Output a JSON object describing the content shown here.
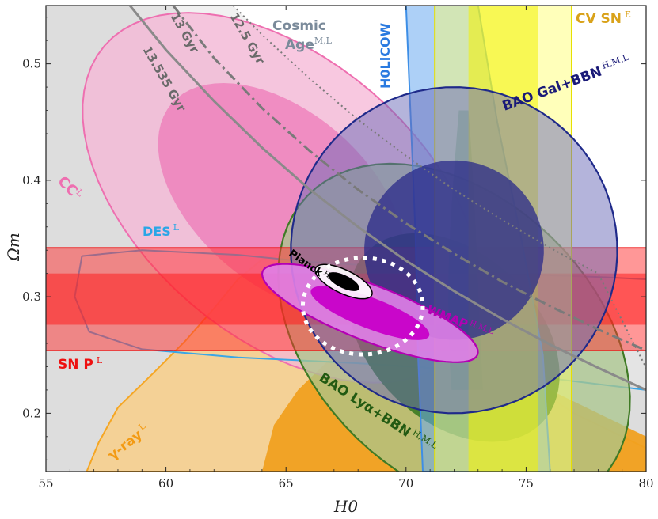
{
  "chart_data": {
    "type": "contour",
    "title": "",
    "xlabel": "H0",
    "ylabel": "Ωm",
    "xlim": [
      55,
      80
    ],
    "ylim": [
      0.15,
      0.55
    ],
    "xticks": [
      55,
      60,
      65,
      70,
      75,
      80
    ],
    "yticks": [
      0.2,
      0.3,
      0.4,
      0.5
    ],
    "xtick_labels": [
      "55",
      "60",
      "65",
      "70",
      "75",
      "80"
    ],
    "ytick_labels": [
      "0.2",
      "0.3",
      "0.4",
      "0.5"
    ],
    "colors": {
      "grey": "#9a9a9a",
      "pink": "#ee6fb0",
      "cyan": "#3aa6e6",
      "red": "#ff1f1f",
      "orange": "#f5a623",
      "green": "#2e7d1e",
      "purple": "#b94fd0",
      "magenta": "#c800c8",
      "navy": "#1f2a8a",
      "blue": "#3d8ee6",
      "yellow": "#f2f200",
      "gold": "#d9a21a",
      "slate": "#7a8a9a"
    },
    "cosmic_age_curves": [
      {
        "label": "13 Gyr",
        "style": "dashdot",
        "color": "#7a7a7a",
        "points": [
          [
            60.3,
            0.55
          ],
          [
            62,
            0.505
          ],
          [
            64,
            0.462
          ],
          [
            66,
            0.425
          ],
          [
            68,
            0.392
          ],
          [
            70,
            0.363
          ],
          [
            72,
            0.337
          ],
          [
            74,
            0.313
          ],
          [
            76,
            0.292
          ],
          [
            78,
            0.272
          ],
          [
            80,
            0.254
          ]
        ]
      },
      {
        "label": "12.5 Gyr",
        "style": "dotted",
        "color": "#7a7a7a",
        "points": [
          [
            62.8,
            0.55
          ],
          [
            64,
            0.525
          ],
          [
            66,
            0.487
          ],
          [
            68,
            0.452
          ],
          [
            70,
            0.421
          ],
          [
            72,
            0.392
          ],
          [
            74,
            0.366
          ],
          [
            76,
            0.342
          ],
          [
            78,
            0.32
          ],
          [
            80,
            0.239
          ]
        ]
      },
      {
        "label": "13.535 Gyr",
        "style": "solid",
        "color": "#8a8a8a",
        "points": [
          [
            58.5,
            0.55
          ],
          [
            60,
            0.512
          ],
          [
            62,
            0.468
          ],
          [
            64,
            0.428
          ],
          [
            66,
            0.392
          ],
          [
            68,
            0.36
          ],
          [
            70,
            0.331
          ],
          [
            72,
            0.305
          ],
          [
            74,
            0.281
          ],
          [
            76,
            0.259
          ],
          [
            78,
            0.239
          ],
          [
            80,
            0.22
          ]
        ]
      }
    ],
    "bands": [
      {
        "label": "SN P",
        "superscript": "L",
        "param": "Omega_m",
        "ranges_1sigma": [
          0.276,
          0.32
        ],
        "ranges_2sigma": [
          0.254,
          0.342
        ],
        "color": "#ff1f1f"
      },
      {
        "label": "CV SN",
        "superscript": "E",
        "param": "H0",
        "ranges_1sigma": [
          72.6,
          75.5
        ],
        "ranges_2sigma": [
          71.2,
          76.9
        ],
        "color": "#f2f200"
      }
    ],
    "ellipses": [
      {
        "label": "CC",
        "superscript": "L",
        "center": [
          64.8,
          0.385
        ],
        "sig_h": 5.8,
        "sig_m": 0.2,
        "angle": 0.86,
        "color": "#ee6fb0"
      },
      {
        "label": "DES",
        "superscript": "L",
        "center": [
          67.5,
          0.285
        ],
        "sig_h": 22,
        "sig_m": 0.05,
        "angle": -0.05,
        "color": "#3aa6e6"
      },
      {
        "label": "BAO Lyα+BBN",
        "superscript": "H,M,L",
        "center": [
          72.0,
          0.265
        ],
        "sig_h": 8.5,
        "sig_m": 0.12,
        "angle": -0.77,
        "color": "#2e7d1e"
      },
      {
        "label": "BAO Gal+BBN",
        "superscript": "H,M,L",
        "center": [
          72.0,
          0.34
        ],
        "sig_h": 6.8,
        "sig_m": 0.14,
        "angle": 0.75,
        "color": "#1f2a8a"
      },
      {
        "label": "WMAP",
        "superscript": "H,M,L",
        "center": [
          68.5,
          0.286
        ],
        "sig_h": 4.8,
        "sig_m": 0.024,
        "angle": -0.37,
        "color": "#b94fd0"
      },
      {
        "label": "Planck",
        "superscript": "H,M,L",
        "center": [
          67.4,
          0.313
        ],
        "sig_h": 1.3,
        "sig_m": 0.01,
        "angle": -0.45,
        "color": "#000000"
      },
      {
        "label": "H0LiCOW",
        "superscript": "",
        "center": [
          72.0,
          0.35
        ],
        "sig_h": 2.0,
        "sig_m": 0.3,
        "angle": 0.06,
        "color": "#3d8ee6"
      },
      {
        "label": "γ-ray",
        "superscript": "L",
        "center": [
          66,
          0.2
        ],
        "sig_h": 10,
        "sig_m": 0.12,
        "angle": 0,
        "color": "#f5a623"
      }
    ],
    "annotations": [
      {
        "text": "Cosmic",
        "sup": ""
      },
      {
        "text": "Age",
        "sup": "M,L"
      },
      {
        "text": "13 Gyr",
        "sup": ""
      },
      {
        "text": "12.5 Gyr",
        "sup": ""
      },
      {
        "text": "13.535 Gyr",
        "sup": ""
      },
      {
        "text": "H0LiCOW",
        "sup": ""
      },
      {
        "text": "CV SN",
        "sup": "E"
      },
      {
        "text": "BAO Gal+BBN",
        "sup": "H,M,L"
      },
      {
        "text": "CC",
        "sup": "L"
      },
      {
        "text": "DES",
        "sup": "L"
      },
      {
        "text": "SN P",
        "sup": "L"
      },
      {
        "text": "Planck",
        "sup": "H,M,L"
      },
      {
        "text": "WMAP",
        "sup": "H,M,L"
      },
      {
        "text": "BAO Lyα+BBN",
        "sup": "H,M,L"
      },
      {
        "text": "γ-ray",
        "sup": "L"
      }
    ]
  }
}
